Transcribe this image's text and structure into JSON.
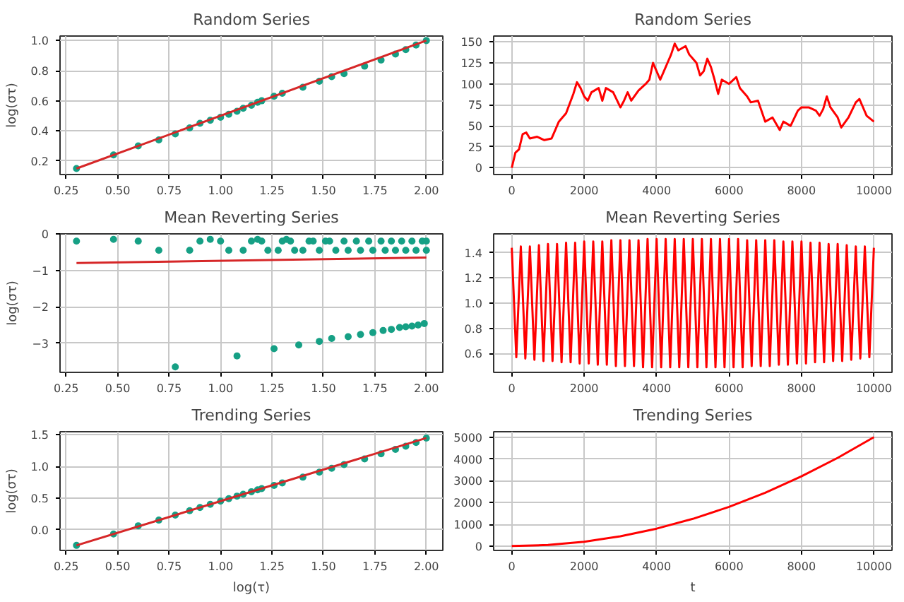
{
  "chart_data": [
    {
      "type": "scatter",
      "title": "Random Series",
      "ylabel": "log(στ)",
      "xlim": [
        0.22,
        2.08
      ],
      "ylim": [
        0.11,
        1.03
      ],
      "xticks": [
        {
          "value": 0.25,
          "label": "0.25"
        },
        {
          "value": 0.5,
          "label": "0.50"
        },
        {
          "value": 0.75,
          "label": "0.75"
        },
        {
          "value": 1,
          "label": "1.00"
        },
        {
          "value": 1.25,
          "label": "1.25"
        },
        {
          "value": 1.5,
          "label": "1.50"
        },
        {
          "value": 1.75,
          "label": "1.75"
        },
        {
          "value": 2,
          "label": "2.00"
        }
      ],
      "yticks": [
        0.2,
        0.4,
        0.6,
        0.8,
        {
          "value": 1,
          "label": "1.0"
        }
      ],
      "grid": true,
      "series": [
        {
          "marker": "circle",
          "color": "#16a085",
          "x": [
            0.3,
            0.48,
            0.6,
            0.7,
            0.78,
            0.85,
            0.9,
            0.95,
            1.0,
            1.04,
            1.08,
            1.11,
            1.15,
            1.18,
            1.2,
            1.26,
            1.3,
            1.4,
            1.48,
            1.54,
            1.6,
            1.7,
            1.78,
            1.85,
            1.9,
            1.95,
            2.0
          ],
          "values": [
            0.15,
            0.24,
            0.3,
            0.34,
            0.38,
            0.42,
            0.45,
            0.47,
            0.49,
            0.51,
            0.53,
            0.55,
            0.57,
            0.59,
            0.6,
            0.63,
            0.65,
            0.69,
            0.73,
            0.76,
            0.78,
            0.83,
            0.87,
            0.91,
            0.94,
            0.97,
            1.0
          ]
        },
        {
          "type": "line",
          "color": "#d62728",
          "x": [
            0.3,
            2.0
          ],
          "values": [
            0.15,
            1.0
          ]
        }
      ]
    },
    {
      "type": "line",
      "title": "Random Series",
      "xlim": [
        -500,
        10500
      ],
      "ylim": [
        -8,
        157
      ],
      "xticks": [
        0,
        2000,
        4000,
        6000,
        8000,
        10000
      ],
      "yticks": [
        0,
        25,
        50,
        75,
        100,
        125,
        150
      ],
      "grid": true,
      "line_style": "solid",
      "series": [
        {
          "color": "#ff0000",
          "x": [
            0,
            100,
            200,
            300,
            400,
            500,
            700,
            900,
            1100,
            1200,
            1300,
            1500,
            1700,
            1800,
            1900,
            2000,
            2100,
            2200,
            2400,
            2500,
            2600,
            2800,
            3000,
            3100,
            3200,
            3300,
            3500,
            3700,
            3800,
            3900,
            4000,
            4100,
            4200,
            4300,
            4400,
            4500,
            4600,
            4800,
            4900,
            5000,
            5100,
            5200,
            5300,
            5400,
            5500,
            5600,
            5700,
            5800,
            6000,
            6200,
            6300,
            6500,
            6600,
            6800,
            7000,
            7200,
            7400,
            7500,
            7700,
            7900,
            8000,
            8200,
            8400,
            8500,
            8600,
            8700,
            8800,
            9000,
            9100,
            9300,
            9500,
            9600,
            9700,
            9800,
            10000
          ],
          "values": [
            0,
            18,
            22,
            40,
            42,
            35,
            37,
            33,
            35,
            45,
            55,
            65,
            88,
            102,
            95,
            85,
            80,
            90,
            95,
            80,
            95,
            90,
            72,
            80,
            90,
            80,
            92,
            100,
            105,
            125,
            115,
            105,
            115,
            125,
            135,
            148,
            140,
            145,
            135,
            130,
            125,
            110,
            115,
            130,
            120,
            105,
            88,
            105,
            100,
            108,
            95,
            85,
            78,
            80,
            55,
            60,
            45,
            55,
            50,
            68,
            72,
            72,
            68,
            62,
            70,
            85,
            72,
            60,
            48,
            60,
            78,
            82,
            72,
            62,
            55
          ]
        }
      ]
    },
    {
      "type": "scatter",
      "title": "Mean Reverting Series",
      "ylabel": "log(στ)",
      "xlim": [
        0.22,
        2.08
      ],
      "ylim": [
        -3.8,
        0
      ],
      "xticks": [
        {
          "value": 0.25,
          "label": "0.25"
        },
        {
          "value": 0.5,
          "label": "0.50"
        },
        {
          "value": 0.75,
          "label": "0.75"
        },
        {
          "value": 1,
          "label": "1.00"
        },
        {
          "value": 1.25,
          "label": "1.25"
        },
        {
          "value": 1.5,
          "label": "1.50"
        },
        {
          "value": 1.75,
          "label": "1.75"
        },
        {
          "value": 2,
          "label": "2.00"
        }
      ],
      "yticks": [
        {
          "value": -3,
          "label": "−3"
        },
        {
          "value": -2,
          "label": "−2"
        },
        {
          "value": -1,
          "label": "−1"
        },
        0
      ],
      "grid": true,
      "series": [
        {
          "marker": "circle",
          "color": "#16a085",
          "x": [
            0.3,
            0.48,
            0.6,
            0.7,
            0.85,
            0.9,
            0.95,
            1.0,
            1.04,
            1.11,
            1.15,
            1.18,
            1.2,
            1.23,
            1.28,
            1.3,
            1.32,
            1.34,
            1.36,
            1.4,
            1.43,
            1.45,
            1.48,
            1.51,
            1.53,
            1.56,
            1.6,
            1.62,
            1.66,
            1.68,
            1.72,
            1.74,
            1.78,
            1.8,
            1.83,
            1.85,
            1.88,
            1.9,
            1.93,
            1.95,
            1.98,
            2.0,
            2.0,
            0.78,
            1.08,
            1.26,
            1.38,
            1.48,
            1.54,
            1.62,
            1.68,
            1.74,
            1.79,
            1.83,
            1.87,
            1.9,
            1.93,
            1.96,
            1.99
          ],
          "values": [
            -0.2,
            -0.15,
            -0.2,
            -0.45,
            -0.45,
            -0.2,
            -0.15,
            -0.2,
            -0.45,
            -0.45,
            -0.2,
            -0.15,
            -0.2,
            -0.45,
            -0.45,
            -0.2,
            -0.15,
            -0.2,
            -0.45,
            -0.45,
            -0.2,
            -0.2,
            -0.45,
            -0.2,
            -0.2,
            -0.45,
            -0.2,
            -0.45,
            -0.2,
            -0.45,
            -0.2,
            -0.45,
            -0.2,
            -0.45,
            -0.2,
            -0.45,
            -0.2,
            -0.45,
            -0.2,
            -0.45,
            -0.2,
            -0.45,
            -0.2,
            -3.65,
            -3.35,
            -3.15,
            -3.05,
            -2.95,
            -2.87,
            -2.82,
            -2.76,
            -2.71,
            -2.65,
            -2.62,
            -2.57,
            -2.55,
            -2.53,
            -2.5,
            -2.46
          ]
        },
        {
          "type": "line",
          "color": "#d62728",
          "x": [
            0.3,
            2.0
          ],
          "values": [
            -0.8,
            -0.65
          ]
        }
      ]
    },
    {
      "type": "line",
      "title": "Mean Reverting Series",
      "xlim": [
        -500,
        10500
      ],
      "ylim": [
        0.45,
        1.55
      ],
      "xticks": [
        0,
        2000,
        4000,
        6000,
        8000,
        10000
      ],
      "yticks": [
        0.6,
        0.8,
        {
          "value": 1,
          "label": "1.0"
        },
        1.2,
        1.4
      ],
      "grid": true,
      "series": [
        {
          "color": "#ff0000",
          "x": [
            0,
            125,
            250,
            375,
            500,
            625,
            750,
            875,
            1000,
            1125,
            1250,
            1375,
            1500,
            1625,
            1750,
            1875,
            2000,
            2125,
            2250,
            2375,
            2500,
            2625,
            2750,
            2875,
            3000,
            3125,
            3250,
            3375,
            3500,
            3625,
            3750,
            3875,
            4000,
            4125,
            4250,
            4375,
            4500,
            4625,
            4750,
            4875,
            5000,
            5125,
            5250,
            5375,
            5500,
            5625,
            5750,
            5875,
            6000,
            6125,
            6250,
            6375,
            6500,
            6625,
            6750,
            6875,
            7000,
            7125,
            7250,
            7375,
            7500,
            7625,
            7750,
            7875,
            8000,
            8125,
            8250,
            8375,
            8500,
            8625,
            8750,
            8875,
            9000,
            9125,
            9250,
            9375,
            9500,
            9625,
            9750,
            9875,
            10000
          ],
          "values": [
            1.44,
            0.57,
            1.45,
            0.56,
            1.45,
            0.55,
            1.46,
            0.54,
            1.47,
            0.54,
            1.47,
            0.53,
            1.48,
            0.53,
            1.48,
            0.52,
            1.49,
            0.52,
            1.49,
            0.51,
            1.49,
            0.51,
            1.5,
            0.5,
            1.5,
            0.5,
            1.5,
            0.5,
            1.5,
            0.49,
            1.51,
            0.49,
            1.51,
            0.49,
            1.51,
            0.49,
            1.51,
            0.49,
            1.51,
            0.49,
            1.51,
            0.49,
            1.51,
            0.49,
            1.51,
            0.49,
            1.51,
            0.49,
            1.51,
            0.49,
            1.51,
            0.49,
            1.5,
            0.5,
            1.5,
            0.5,
            1.5,
            0.5,
            1.5,
            0.51,
            1.49,
            0.51,
            1.49,
            0.52,
            1.49,
            0.52,
            1.48,
            0.53,
            1.48,
            0.53,
            1.47,
            0.54,
            1.47,
            0.54,
            1.46,
            0.55,
            1.45,
            0.56,
            1.45,
            0.57,
            1.44
          ]
        }
      ]
    },
    {
      "type": "scatter",
      "title": "Trending Series",
      "xlabel": "log(τ)",
      "ylabel": "log(στ)",
      "xlim": [
        0.22,
        2.08
      ],
      "ylim": [
        -0.33,
        1.55
      ],
      "xticks": [
        {
          "value": 0.25,
          "label": "0.25"
        },
        {
          "value": 0.5,
          "label": "0.50"
        },
        {
          "value": 0.75,
          "label": "0.75"
        },
        {
          "value": 1,
          "label": "1.00"
        },
        {
          "value": 1.25,
          "label": "1.25"
        },
        {
          "value": 1.5,
          "label": "1.50"
        },
        {
          "value": 1.75,
          "label": "1.75"
        },
        {
          "value": 2,
          "label": "2.00"
        }
      ],
      "yticks": [
        {
          "value": 0,
          "label": "0.0"
        },
        0.5,
        {
          "value": 1,
          "label": "1.0"
        },
        1.5
      ],
      "grid": true,
      "series": [
        {
          "marker": "circle",
          "color": "#16a085",
          "x": [
            0.3,
            0.48,
            0.6,
            0.7,
            0.78,
            0.85,
            0.9,
            0.95,
            1.0,
            1.04,
            1.08,
            1.11,
            1.15,
            1.18,
            1.2,
            1.26,
            1.3,
            1.4,
            1.48,
            1.54,
            1.6,
            1.7,
            1.78,
            1.85,
            1.9,
            1.95,
            2.0
          ],
          "values": [
            -0.25,
            -0.07,
            0.06,
            0.15,
            0.23,
            0.3,
            0.35,
            0.4,
            0.45,
            0.49,
            0.53,
            0.56,
            0.6,
            0.63,
            0.65,
            0.7,
            0.74,
            0.83,
            0.91,
            0.97,
            1.03,
            1.12,
            1.2,
            1.27,
            1.32,
            1.38,
            1.45
          ]
        },
        {
          "type": "line",
          "color": "#d62728",
          "x": [
            0.3,
            2.0
          ],
          "values": [
            -0.25,
            1.45
          ]
        }
      ]
    },
    {
      "type": "line",
      "title": "Trending Series",
      "xlabel": "t",
      "xlim": [
        -500,
        10500
      ],
      "ylim": [
        -200,
        5250
      ],
      "xticks": [
        0,
        2000,
        4000,
        6000,
        8000,
        10000
      ],
      "yticks": [
        0,
        1000,
        2000,
        3000,
        4000,
        5000
      ],
      "grid": true,
      "line_style": "solid",
      "series": [
        {
          "color": "#ff0000",
          "x": [
            0,
            1000,
            2000,
            3000,
            4000,
            5000,
            6000,
            7000,
            8000,
            9000,
            10000
          ],
          "values": [
            0,
            50,
            200,
            450,
            800,
            1250,
            1800,
            2450,
            3200,
            4050,
            5000
          ]
        }
      ]
    }
  ]
}
